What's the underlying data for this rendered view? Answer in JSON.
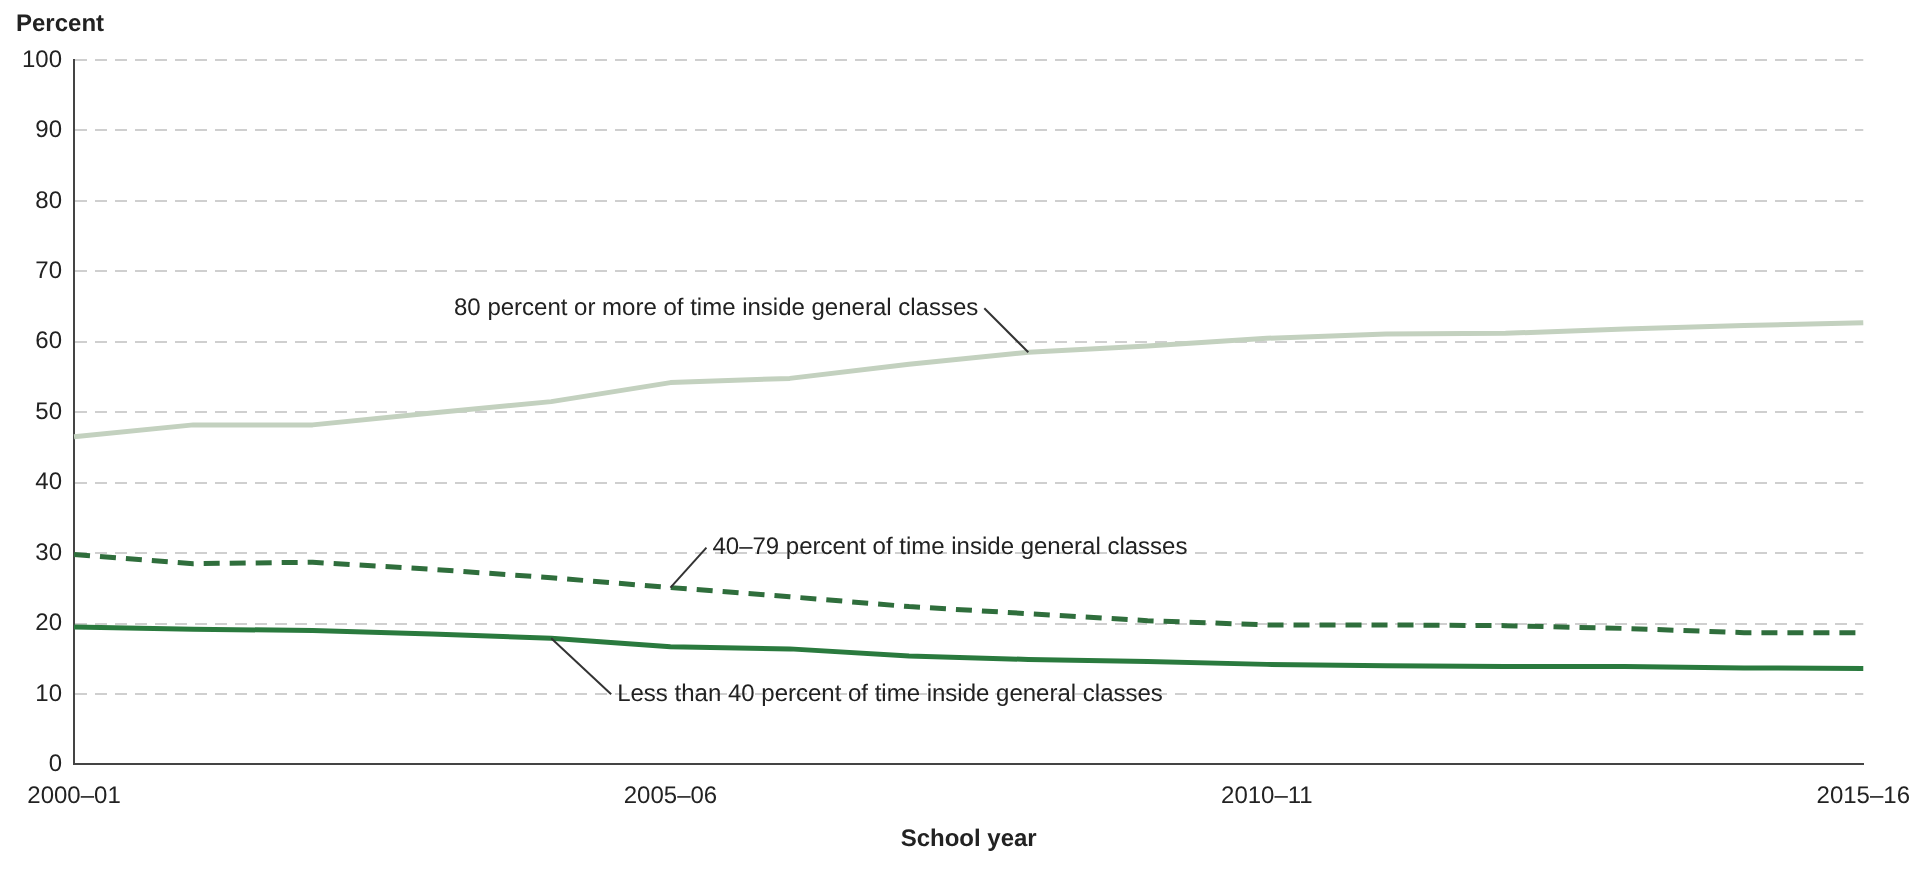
{
  "chart_data": {
    "type": "line",
    "xlabel": "School year",
    "ylabel": "Percent",
    "categories": [
      "2000–01",
      null,
      null,
      null,
      null,
      "2005–06",
      null,
      null,
      null,
      null,
      "2010–11",
      null,
      null,
      null,
      null,
      "2015–16"
    ],
    "series": [
      {
        "name": "80 percent or more of time inside general classes",
        "color": "#c3d1bf",
        "values": [
          46.5,
          48.2,
          48.2,
          49.9,
          51.5,
          54.2,
          54.8,
          56.8,
          58.5,
          59.4,
          60.5,
          61.1,
          61.2,
          61.8,
          62.3,
          62.7
        ]
      },
      {
        "name": "40–79 percent of time inside general classes",
        "color": "#2f6e3c",
        "line_style": "dashed",
        "values": [
          29.8,
          28.5,
          28.7,
          27.7,
          26.5,
          25.1,
          23.8,
          22.4,
          21.4,
          20.4,
          19.8,
          19.8,
          19.7,
          19.3,
          18.7,
          18.7
        ]
      },
      {
        "name": "Less than 40 percent of time inside general classes",
        "color": "#2a7a3e",
        "line_style": "solid",
        "values": [
          19.5,
          19.2,
          19.0,
          18.5,
          17.9,
          16.7,
          16.4,
          15.4,
          14.9,
          14.6,
          14.2,
          14.0,
          13.9,
          13.9,
          13.7,
          13.6
        ]
      }
    ],
    "ylim": [
      0,
      100
    ],
    "yticks": [
      0,
      10,
      20,
      30,
      40,
      50,
      60,
      70,
      80,
      90,
      100
    ],
    "grid": "y",
    "legend": false,
    "marker": "none",
    "line_style": "solid"
  }
}
